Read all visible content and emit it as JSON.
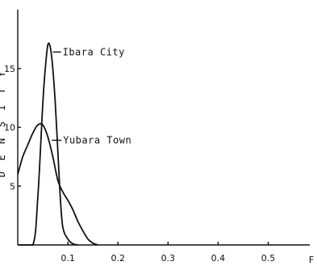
{
  "chart_data": {
    "type": "line",
    "title": "",
    "xlabel": "F",
    "ylabel": "DENSITY",
    "xlim": [
      0,
      0.57
    ],
    "ylim": [
      0,
      20
    ],
    "x_ticks": [
      "0.1",
      "0.2",
      "0.3",
      "0.4",
      "0.5"
    ],
    "y_ticks": [
      "5",
      "10",
      "15"
    ],
    "grid": false,
    "series": [
      {
        "name": "Ibara City",
        "x": [
          0.0,
          0.03,
          0.04,
          0.05,
          0.055,
          0.06,
          0.065,
          0.07,
          0.075,
          0.08,
          0.085,
          0.09,
          0.1,
          0.11,
          0.12
        ],
        "y": [
          0.0,
          0.0,
          4.0,
          12.0,
          15.0,
          17.0,
          16.8,
          15.0,
          12.0,
          8.0,
          4.0,
          1.5,
          0.5,
          0.1,
          0.0
        ]
      },
      {
        "name": "Yubara Town",
        "x": [
          0.0,
          0.01,
          0.02,
          0.03,
          0.04,
          0.05,
          0.06,
          0.07,
          0.08,
          0.09,
          0.1,
          0.11,
          0.12,
          0.13,
          0.14,
          0.15,
          0.16
        ],
        "y": [
          6.0,
          7.5,
          8.5,
          9.5,
          10.2,
          10.2,
          9.2,
          7.5,
          5.5,
          4.5,
          3.8,
          3.0,
          2.0,
          1.2,
          0.5,
          0.15,
          0.0
        ]
      }
    ],
    "annotations": [
      "Ibara City",
      "Yubara Town"
    ]
  }
}
